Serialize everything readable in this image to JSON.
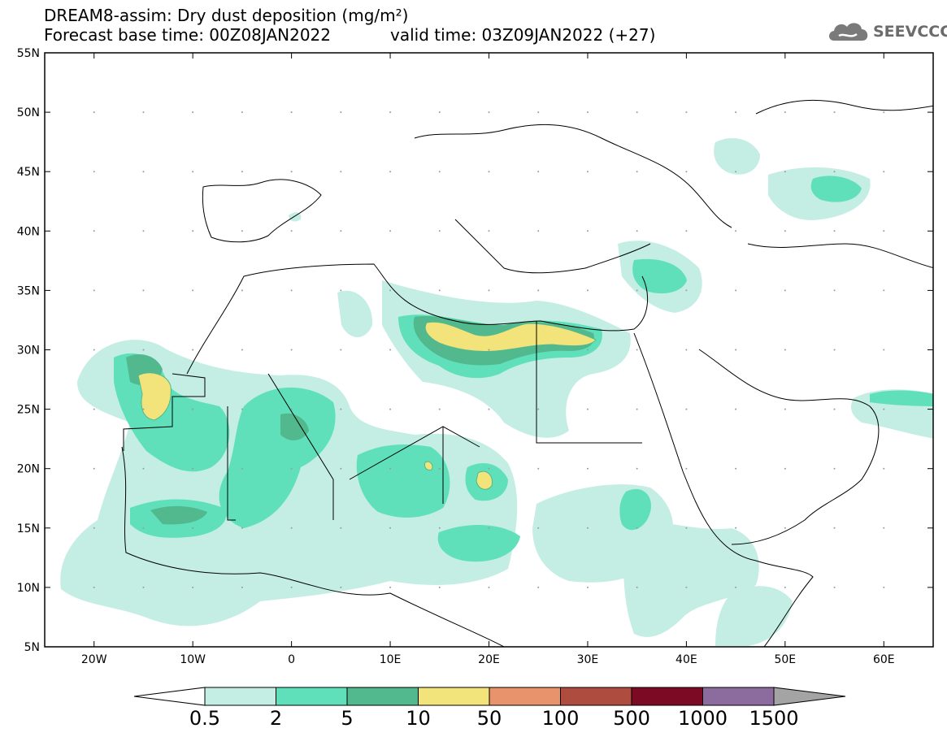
{
  "header": {
    "title_line1": "DREAM8-assim: Dry dust deposition (mg/m²)",
    "title_line2": "Forecast base time: 00Z08JAN2022",
    "valid_time": "valid time: 03Z09JAN2022 (+27)",
    "logo_text": "SEEVCCC",
    "logo_icon": "cloud-icon"
  },
  "map": {
    "lat_labels": [
      "55N",
      "50N",
      "45N",
      "40N",
      "35N",
      "30N",
      "25N",
      "20N",
      "15N",
      "10N",
      "5N"
    ],
    "lon_labels": [
      "20W",
      "10W",
      "0",
      "10E",
      "20E",
      "30E",
      "40E",
      "50E",
      "60E"
    ],
    "lon_range": [
      -25,
      65
    ],
    "lat_range": [
      5,
      55
    ]
  },
  "colorbar": {
    "levels": [
      "0.5",
      "2",
      "5",
      "10",
      "50",
      "100",
      "500",
      "1000",
      "1500"
    ],
    "colors": [
      "#ffffff",
      "#c4eee4",
      "#5fe0bb",
      "#52b98e",
      "#f2e37b",
      "#e9936d",
      "#ad4c3f",
      "#7d0a24",
      "#8c6c9f",
      "#a4a4a4"
    ]
  }
}
